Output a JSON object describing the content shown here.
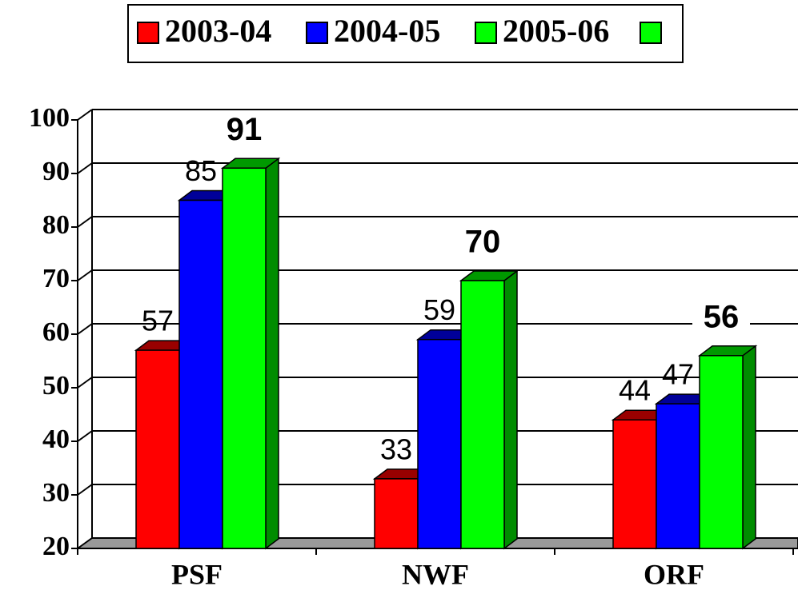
{
  "chart_data": {
    "type": "bar",
    "categories": [
      "PSF",
      "NWF",
      "ORF"
    ],
    "series": [
      {
        "name": "2003-04",
        "color": "#ff0000",
        "values": [
          57,
          33,
          44
        ]
      },
      {
        "name": "2004-05",
        "color": "#0000ff",
        "values": [
          85,
          59,
          47
        ]
      },
      {
        "name": "2005-06",
        "color": "#00ff00",
        "values": [
          91,
          70,
          56
        ]
      }
    ],
    "ylim": [
      20,
      100
    ],
    "yticks": [
      20,
      30,
      40,
      50,
      60,
      70,
      80,
      90,
      100
    ],
    "grid": true
  }
}
